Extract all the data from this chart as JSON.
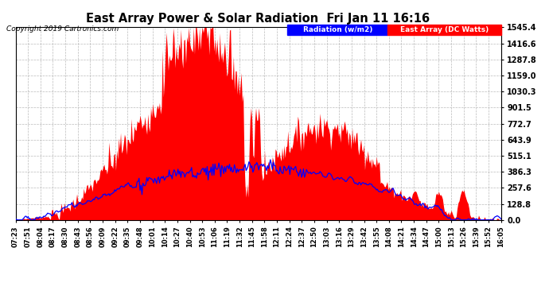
{
  "title": "East Array Power & Solar Radiation  Fri Jan 11 16:16",
  "copyright": "Copyright 2019 Cartronics.com",
  "legend_blue_label": "Radiation (w/m2)",
  "legend_red_label": "East Array (DC Watts)",
  "y_ticks": [
    0.0,
    128.8,
    257.6,
    386.3,
    515.1,
    643.9,
    772.7,
    901.5,
    1030.3,
    1159.0,
    1287.8,
    1416.6,
    1545.4
  ],
  "y_max": 1545.4,
  "y_min": 0.0,
  "x_labels": [
    "07:23",
    "07:51",
    "08:04",
    "08:17",
    "08:30",
    "08:43",
    "08:56",
    "09:09",
    "09:22",
    "09:35",
    "09:48",
    "10:01",
    "10:14",
    "10:27",
    "10:40",
    "10:53",
    "11:06",
    "11:19",
    "11:32",
    "11:45",
    "11:58",
    "12:11",
    "12:24",
    "12:37",
    "12:50",
    "13:03",
    "13:16",
    "13:29",
    "13:42",
    "13:55",
    "14:08",
    "14:21",
    "14:34",
    "14:47",
    "15:00",
    "15:13",
    "15:26",
    "15:39",
    "15:52",
    "16:05"
  ],
  "num_points": 500
}
